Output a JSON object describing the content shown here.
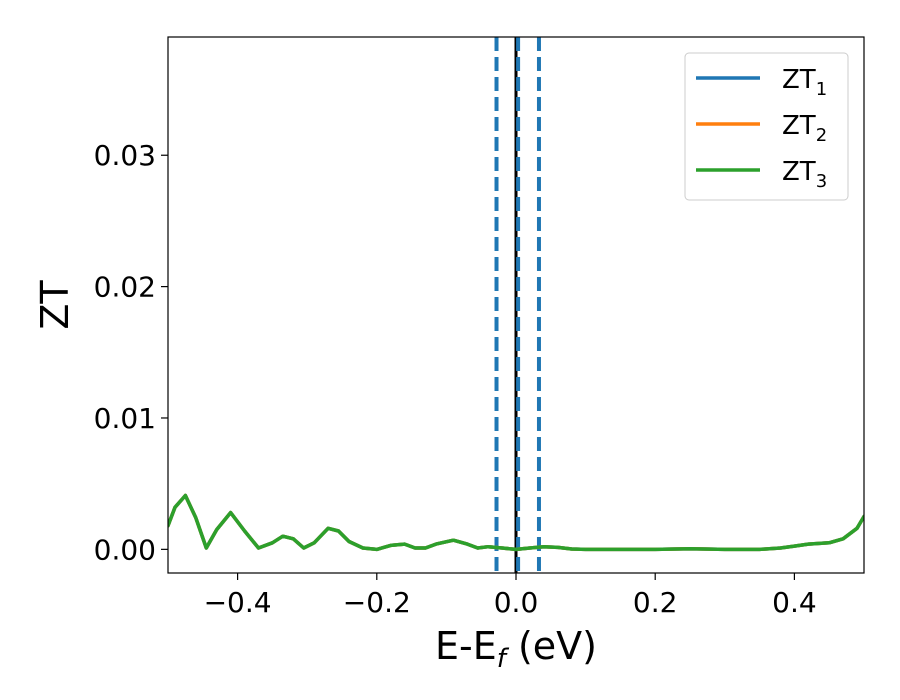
{
  "chart_data": {
    "type": "line",
    "xlabel": {
      "main": "E-E",
      "sub": "f",
      "suffix": " (eV)"
    },
    "ylabel": "ZT",
    "xlim": [
      -0.5,
      0.5
    ],
    "ylim": [
      -0.0018,
      0.039
    ],
    "xticks": [
      -0.4,
      -0.2,
      0.0,
      0.2,
      0.4
    ],
    "xtick_labels": [
      "−0.4",
      "−0.2",
      "0.0",
      "0.2",
      "0.4"
    ],
    "yticks": [
      0.0,
      0.01,
      0.02,
      0.03
    ],
    "ytick_labels": [
      "0.00",
      "0.01",
      "0.02",
      "0.03"
    ],
    "grid": false,
    "legend_position": "top-right",
    "vertical_lines": [
      {
        "x": 0.0,
        "style": "solid",
        "color": "#000000"
      },
      {
        "x": -0.028,
        "style": "dashed",
        "color": "#1f77b4"
      },
      {
        "x": 0.003,
        "style": "dashed",
        "color": "#1f77b4"
      },
      {
        "x": 0.033,
        "style": "dashed",
        "color": "#1f77b4"
      }
    ],
    "x": [
      -0.5,
      -0.49,
      -0.475,
      -0.46,
      -0.445,
      -0.43,
      -0.41,
      -0.39,
      -0.37,
      -0.35,
      -0.335,
      -0.32,
      -0.305,
      -0.29,
      -0.27,
      -0.255,
      -0.24,
      -0.22,
      -0.2,
      -0.18,
      -0.16,
      -0.145,
      -0.13,
      -0.115,
      -0.09,
      -0.07,
      -0.055,
      -0.04,
      -0.02,
      0.0,
      0.02,
      0.04,
      0.06,
      0.08,
      0.1,
      0.15,
      0.2,
      0.25,
      0.3,
      0.35,
      0.38,
      0.4,
      0.42,
      0.45,
      0.47,
      0.49,
      0.5
    ],
    "series": [
      {
        "name": "ZT",
        "sub": "1",
        "color": "#1f77b4",
        "values": [
          0.0018,
          0.0032,
          0.0041,
          0.0024,
          0.0001,
          0.0015,
          0.0028,
          0.0014,
          0.0001,
          0.0005,
          0.001,
          0.0008,
          0.0001,
          0.0005,
          0.0016,
          0.0014,
          0.0006,
          0.0001,
          0.0,
          0.0003,
          0.0004,
          0.0001,
          0.0001,
          0.0004,
          0.0007,
          0.0004,
          0.0001,
          0.0002,
          0.0001,
          0.0,
          0.0001,
          0.0002,
          0.00015,
          3e-05,
          0.0,
          0.0,
          0.0,
          5e-05,
          0.0,
          0.0,
          0.0001,
          0.00025,
          0.0004,
          0.0005,
          0.0008,
          0.0016,
          0.0025
        ]
      },
      {
        "name": "ZT",
        "sub": "2",
        "color": "#ff7f0e",
        "values": [
          0.0018,
          0.0032,
          0.0041,
          0.0024,
          0.0001,
          0.0015,
          0.0028,
          0.0014,
          0.0001,
          0.0005,
          0.001,
          0.0008,
          0.0001,
          0.0005,
          0.0016,
          0.0014,
          0.0006,
          0.0001,
          0.0,
          0.0003,
          0.0004,
          0.0001,
          0.0001,
          0.0004,
          0.0007,
          0.0004,
          0.0001,
          0.0002,
          0.0001,
          0.0,
          0.0001,
          0.0002,
          0.00015,
          3e-05,
          0.0,
          0.0,
          0.0,
          5e-05,
          0.0,
          0.0,
          0.0001,
          0.00025,
          0.0004,
          0.0005,
          0.0008,
          0.0016,
          0.0025
        ]
      },
      {
        "name": "ZT",
        "sub": "3",
        "color": "#2ca02c",
        "values": [
          0.0018,
          0.0032,
          0.0041,
          0.0024,
          0.0001,
          0.0015,
          0.0028,
          0.0014,
          0.0001,
          0.0005,
          0.001,
          0.0008,
          0.0001,
          0.0005,
          0.0016,
          0.0014,
          0.0006,
          0.0001,
          0.0,
          0.0003,
          0.0004,
          0.0001,
          0.0001,
          0.0004,
          0.0007,
          0.0004,
          0.0001,
          0.0002,
          0.0001,
          0.0,
          0.0001,
          0.0002,
          0.00015,
          3e-05,
          0.0,
          0.0,
          0.0,
          5e-05,
          0.0,
          0.0,
          0.0001,
          0.00025,
          0.0004,
          0.0005,
          0.0008,
          0.0016,
          0.0025
        ]
      }
    ]
  }
}
